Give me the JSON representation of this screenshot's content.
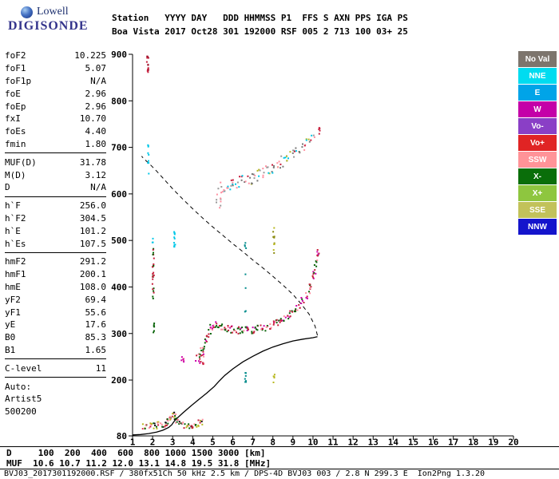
{
  "logo": {
    "line1": "Lowell",
    "line2": "DIGISONDE"
  },
  "header": {
    "line1": "Station   YYYY DAY   DDD HHMMSS P1  FFS S AXN PPS IGA PS",
    "line2": "Boa Vista 2017 Oct28 301 192000 RSF 005 2 713 100 03+ 25"
  },
  "params": {
    "groups": [
      {
        "rows": [
          [
            "foF2",
            "10.225"
          ],
          [
            "foF1",
            "5.07"
          ],
          [
            "foF1p",
            "N/A"
          ],
          [
            "foE",
            "2.96"
          ],
          [
            "foEp",
            "2.96"
          ],
          [
            "fxI",
            "10.70"
          ],
          [
            "foEs",
            "4.40"
          ],
          [
            "fmin",
            "1.80"
          ]
        ]
      },
      {
        "rows": [
          [
            "MUF(D)",
            "31.78"
          ],
          [
            "M(D)",
            "3.12"
          ],
          [
            "D",
            "N/A"
          ]
        ]
      },
      {
        "rows": [
          [
            "h`F",
            "256.0"
          ],
          [
            "h`F2",
            "304.5"
          ],
          [
            "h`E",
            "101.2"
          ],
          [
            "h`Es",
            "107.5"
          ]
        ]
      },
      {
        "rows": [
          [
            "hmF2",
            "291.2"
          ],
          [
            "hmF1",
            "200.1"
          ],
          [
            "hmE",
            "108.0"
          ],
          [
            "yF2",
            "69.4"
          ],
          [
            "yF1",
            "55.6"
          ],
          [
            "yE",
            "17.6"
          ],
          [
            "B0",
            "85.3"
          ],
          [
            "B1",
            "1.65"
          ]
        ]
      },
      {
        "rows": [
          [
            "C-level",
            "11"
          ]
        ]
      },
      {
        "rows": [
          [
            "Auto:",
            ""
          ],
          [
            "Artist5",
            ""
          ],
          [
            "500200",
            ""
          ]
        ]
      }
    ]
  },
  "legend": [
    {
      "label": "No Val",
      "color": "#7d756d",
      "text": "#ffffff"
    },
    {
      "label": "NNE",
      "color": "#00dcf0",
      "text": "#ffffff"
    },
    {
      "label": "E",
      "color": "#00a4e8",
      "text": "#ffffff"
    },
    {
      "label": "W",
      "color": "#c400a8",
      "text": "#ffffff"
    },
    {
      "label": "Vo-",
      "color": "#8a3fc6",
      "text": "#ffffff"
    },
    {
      "label": "Vo+",
      "color": "#e02424",
      "text": "#ffffff"
    },
    {
      "label": "SSW",
      "color": "#ff9398",
      "text": "#ffffff"
    },
    {
      "label": "X-",
      "color": "#0a6e0a",
      "text": "#ffffff"
    },
    {
      "label": "X+",
      "color": "#8ec63f",
      "text": "#ffffff"
    },
    {
      "label": "SSE",
      "color": "#c2c25a",
      "text": "#ffffff"
    },
    {
      "label": "NNW",
      "color": "#1414cc",
      "text": "#ffffff"
    }
  ],
  "chart_data": {
    "type": "scatter",
    "title": "Digisonde ionogram - Boa Vista 2017 Oct28 301 192000",
    "xlabel": "[MHz]",
    "ylabel": "[km]",
    "xlim": [
      1,
      20
    ],
    "ylim": [
      80,
      900
    ],
    "grid": false,
    "x_ticks": [
      1,
      2,
      3,
      4,
      5,
      6,
      7,
      8,
      9,
      10,
      11,
      12,
      13,
      14,
      15,
      16,
      17,
      18,
      19,
      20
    ],
    "y_tick_labels": [
      900,
      800,
      700,
      600,
      500,
      400,
      300,
      200,
      80
    ],
    "traces": [
      {
        "name": "F-region echo trace",
        "band": 9,
        "density": 4,
        "dx": 2,
        "palette": [
          "#c81e3c",
          "#ff8fa0",
          "#0a640a",
          "#0a640a",
          "#c81e3c",
          "#cc00aa"
        ],
        "points": [
          [
            4.35,
            250
          ],
          [
            4.45,
            262
          ],
          [
            4.55,
            274
          ],
          [
            4.65,
            286
          ],
          [
            4.75,
            297
          ],
          [
            4.85,
            306
          ],
          [
            4.95,
            313
          ],
          [
            5.05,
            318
          ],
          [
            5.15,
            320
          ],
          [
            5.3,
            318
          ],
          [
            5.45,
            315
          ],
          [
            5.6,
            312
          ],
          [
            5.75,
            310
          ],
          [
            5.9,
            309
          ],
          [
            6.05,
            308
          ],
          [
            6.2,
            307
          ],
          [
            6.35,
            307
          ],
          [
            6.5,
            307
          ],
          [
            6.65,
            307
          ],
          [
            6.8,
            307
          ],
          [
            6.95,
            308
          ],
          [
            7.1,
            309
          ],
          [
            7.25,
            310
          ],
          [
            7.4,
            311
          ],
          [
            7.55,
            313
          ],
          [
            7.7,
            315
          ],
          [
            7.85,
            317
          ],
          [
            8.0,
            319
          ],
          [
            8.15,
            322
          ],
          [
            8.3,
            325
          ],
          [
            8.45,
            328
          ],
          [
            8.6,
            332
          ],
          [
            8.75,
            336
          ],
          [
            8.9,
            341
          ],
          [
            9.05,
            347
          ],
          [
            9.2,
            354
          ],
          [
            9.35,
            362
          ],
          [
            9.5,
            371
          ],
          [
            9.65,
            382
          ],
          [
            9.8,
            394
          ],
          [
            9.9,
            407
          ],
          [
            10.0,
            421
          ],
          [
            10.07,
            436
          ],
          [
            10.13,
            450
          ],
          [
            10.18,
            464
          ],
          [
            10.22,
            478
          ]
        ]
      },
      {
        "name": "second-hop spread echo",
        "band": 14,
        "density": 3,
        "dx": 3,
        "palette": [
          "#9a9a9a",
          "#ff8fa0",
          "#c81e3c",
          "#00c8e8",
          "#b8b820",
          "#777777"
        ],
        "points": [
          [
            5.35,
            612
          ],
          [
            5.5,
            615
          ],
          [
            5.65,
            617
          ],
          [
            5.8,
            619
          ],
          [
            5.95,
            621
          ],
          [
            6.1,
            622
          ],
          [
            6.25,
            624
          ],
          [
            6.4,
            626
          ],
          [
            6.55,
            628
          ],
          [
            6.7,
            630
          ],
          [
            6.85,
            633
          ],
          [
            7.0,
            635
          ],
          [
            7.15,
            638
          ],
          [
            7.3,
            641
          ],
          [
            7.45,
            644
          ],
          [
            7.6,
            647
          ],
          [
            7.75,
            650
          ],
          [
            7.9,
            654
          ],
          [
            8.05,
            657
          ],
          [
            8.2,
            661
          ],
          [
            8.35,
            665
          ],
          [
            8.5,
            669
          ],
          [
            8.65,
            674
          ],
          [
            8.8,
            678
          ],
          [
            8.95,
            683
          ],
          [
            9.1,
            688
          ],
          [
            9.25,
            693
          ],
          [
            9.4,
            699
          ],
          [
            9.55,
            705
          ],
          [
            9.7,
            711
          ],
          [
            9.85,
            717
          ],
          [
            10.0,
            724
          ]
        ]
      },
      {
        "name": "E-Es echo trace",
        "band": 8,
        "density": 4,
        "dx": 2,
        "palette": [
          "#0a640a",
          "#c81e3c",
          "#111111",
          "#ff8fa0",
          "#b8b820"
        ],
        "points": [
          [
            1.55,
            99
          ],
          [
            1.7,
            100
          ],
          [
            1.85,
            101
          ],
          [
            2.0,
            102
          ],
          [
            2.15,
            102
          ],
          [
            2.3,
            103
          ],
          [
            2.45,
            104
          ],
          [
            2.6,
            106
          ],
          [
            2.7,
            109
          ],
          [
            2.8,
            114
          ],
          [
            2.9,
            120
          ],
          [
            3.0,
            126
          ],
          [
            3.08,
            122
          ],
          [
            3.15,
            115
          ],
          [
            3.25,
            109
          ],
          [
            3.4,
            105
          ],
          [
            3.55,
            103
          ],
          [
            3.7,
            102
          ],
          [
            3.85,
            102
          ],
          [
            4.0,
            103
          ],
          [
            4.15,
            105
          ],
          [
            4.3,
            107
          ],
          [
            4.45,
            109
          ]
        ]
      }
    ],
    "clusters": [
      {
        "name": "red noise streak",
        "x": 1.75,
        "h1": 852,
        "h2": 900,
        "n": 16,
        "sx": 0.04,
        "colors": [
          "#c81e3c",
          "#a01830"
        ]
      },
      {
        "name": "cyan scatter",
        "x": 1.78,
        "h1": 642,
        "h2": 708,
        "n": 9,
        "sx": 0.03,
        "colors": [
          "#00c8e8"
        ]
      },
      {
        "name": "green streak",
        "x": 2.03,
        "h1": 372,
        "h2": 482,
        "n": 26,
        "sx": 0.04,
        "colors": [
          "#0a640a",
          "#0a640a",
          "#c81e3c"
        ]
      },
      {
        "name": "green dots",
        "x": 2.06,
        "h1": 298,
        "h2": 324,
        "n": 6,
        "sx": 0.03,
        "colors": [
          "#0a640a"
        ]
      },
      {
        "name": "cyan dots",
        "x": 2.0,
        "h1": 492,
        "h2": 508,
        "n": 3,
        "sx": 0.02,
        "colors": [
          "#00c8e8"
        ]
      },
      {
        "name": "cyan streak",
        "x": 3.1,
        "h1": 466,
        "h2": 526,
        "n": 12,
        "sx": 0.03,
        "colors": [
          "#00c8e8"
        ]
      },
      {
        "name": "pink clusterlet",
        "x": 3.5,
        "h1": 234,
        "h2": 252,
        "n": 7,
        "sx": 0.06,
        "colors": [
          "#cc00aa",
          "#ff8fa0"
        ]
      },
      {
        "name": "magenta cluster",
        "x": 4.35,
        "h1": 234,
        "h2": 256,
        "n": 14,
        "sx": 0.22,
        "colors": [
          "#cc00aa",
          "#ff8fa0",
          "#c81e3c"
        ]
      },
      {
        "name": "teal cluster low",
        "x": 6.62,
        "h1": 194,
        "h2": 216,
        "n": 7,
        "sx": 0.05,
        "colors": [
          "#008b8b"
        ]
      },
      {
        "name": "teal sparse column",
        "x": 6.62,
        "h1": 336,
        "h2": 522,
        "n": 8,
        "sx": 0.04,
        "colors": [
          "#008b8b"
        ]
      },
      {
        "name": "olive streak",
        "x": 8.05,
        "h1": 468,
        "h2": 532,
        "n": 10,
        "sx": 0.04,
        "colors": [
          "#b8b820",
          "#8a8a10"
        ]
      },
      {
        "name": "olive dots low",
        "x": 8.05,
        "h1": 194,
        "h2": 212,
        "n": 5,
        "sx": 0.04,
        "colors": [
          "#b8b820"
        ]
      },
      {
        "name": "hop spread",
        "x": 5.25,
        "h1": 566,
        "h2": 606,
        "n": 8,
        "sx": 0.18,
        "colors": [
          "#ff8fa0",
          "#9a9a9a"
        ]
      },
      {
        "name": "red dots top-right",
        "x": 10.32,
        "h1": 728,
        "h2": 742,
        "n": 5,
        "sx": 0.04,
        "colors": [
          "#c81e3c"
        ]
      }
    ],
    "profile_solid": {
      "name": "true-height profile",
      "points": [
        [
          1.0,
          82
        ],
        [
          1.4,
          83
        ],
        [
          1.8,
          85
        ],
        [
          2.2,
          88
        ],
        [
          2.5,
          92
        ],
        [
          2.8,
          98
        ],
        [
          2.96,
          104
        ],
        [
          3.05,
          110
        ],
        [
          3.2,
          117
        ],
        [
          3.5,
          129
        ],
        [
          3.9,
          144
        ],
        [
          4.3,
          158
        ],
        [
          4.7,
          172
        ],
        [
          5.07,
          186
        ],
        [
          5.3,
          197
        ],
        [
          5.6,
          210
        ],
        [
          6.0,
          224
        ],
        [
          6.5,
          239
        ],
        [
          7.0,
          251
        ],
        [
          7.5,
          262
        ],
        [
          8.0,
          271
        ],
        [
          8.5,
          278
        ],
        [
          9.0,
          284
        ],
        [
          9.5,
          288
        ],
        [
          10.0,
          291
        ],
        [
          10.22,
          293
        ]
      ]
    },
    "profile_dashed": {
      "name": "topside model profile",
      "points": [
        [
          10.22,
          296
        ],
        [
          10.1,
          316
        ],
        [
          9.8,
          342
        ],
        [
          9.4,
          364
        ],
        [
          9.0,
          384
        ],
        [
          8.5,
          404
        ],
        [
          8.0,
          423
        ],
        [
          7.5,
          441
        ],
        [
          7.0,
          458
        ],
        [
          6.5,
          476
        ],
        [
          6.0,
          493
        ],
        [
          5.5,
          511
        ],
        [
          5.0,
          529
        ],
        [
          4.5,
          548
        ],
        [
          4.0,
          568
        ],
        [
          3.5,
          589
        ],
        [
          3.0,
          611
        ],
        [
          2.6,
          630
        ],
        [
          2.2,
          649
        ],
        [
          1.9,
          662
        ],
        [
          1.6,
          674
        ],
        [
          1.45,
          681
        ]
      ]
    }
  },
  "footer": {
    "table": {
      "rows": [
        {
          "label": "D",
          "values": [
            "100",
            "200",
            "400",
            "600",
            "800",
            "1000",
            "1500",
            "3000"
          ],
          "unit": "[km]"
        },
        {
          "label": "MUF",
          "values": [
            "10.6",
            "10.7",
            "11.2",
            "12.0",
            "13.1",
            "14.8",
            "19.5",
            "31.8"
          ],
          "unit": "[MHz]"
        }
      ]
    },
    "status": "BVJ03_2017301192000.RSF / 380fx51Ch 50 kHz 2.5 km / DPS-4D BVJ03 003 / 2.8 N 299.3 E  Ion2Png 1.3.20"
  }
}
